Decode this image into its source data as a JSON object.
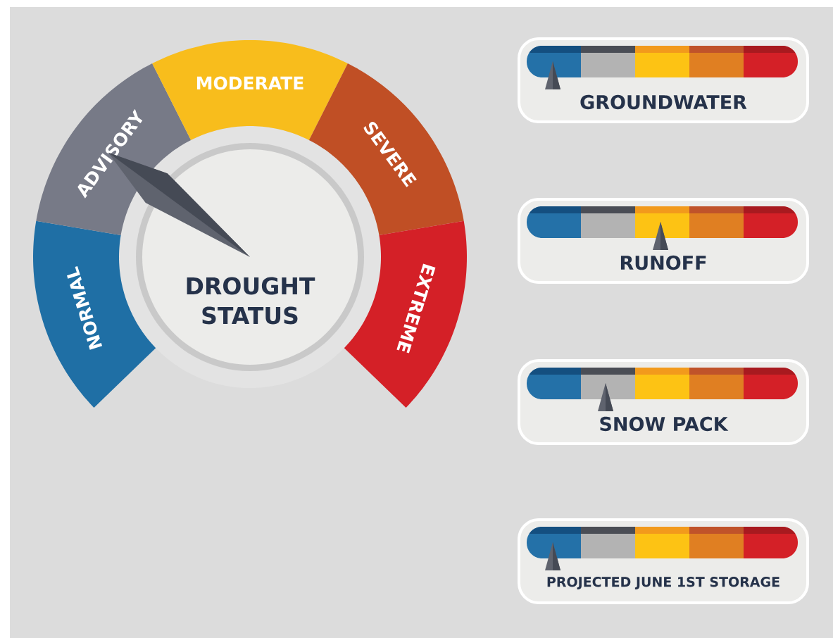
{
  "chart_data": [
    {
      "type": "donut",
      "title": "DROUGHT STATUS",
      "categories": [
        "NORMAL",
        "ADVISORY",
        "MODERATE",
        "SEVERE",
        "EXTREME"
      ],
      "values": [
        20,
        20,
        20,
        20,
        20
      ],
      "colors": [
        "#1f6fa5",
        "#777a87",
        "#f8bd1c",
        "#c04f25",
        "#d42027"
      ],
      "needle": "ADVISORY"
    },
    {
      "type": "other",
      "title": "GROUNDWATER"
    },
    {
      "type": "other",
      "title": "RUNOFF"
    },
    {
      "type": "other",
      "title": "SNOW PACK"
    },
    {
      "type": "other",
      "title": "PROJECTED JUNE 1ST STORAGE"
    }
  ]
}
